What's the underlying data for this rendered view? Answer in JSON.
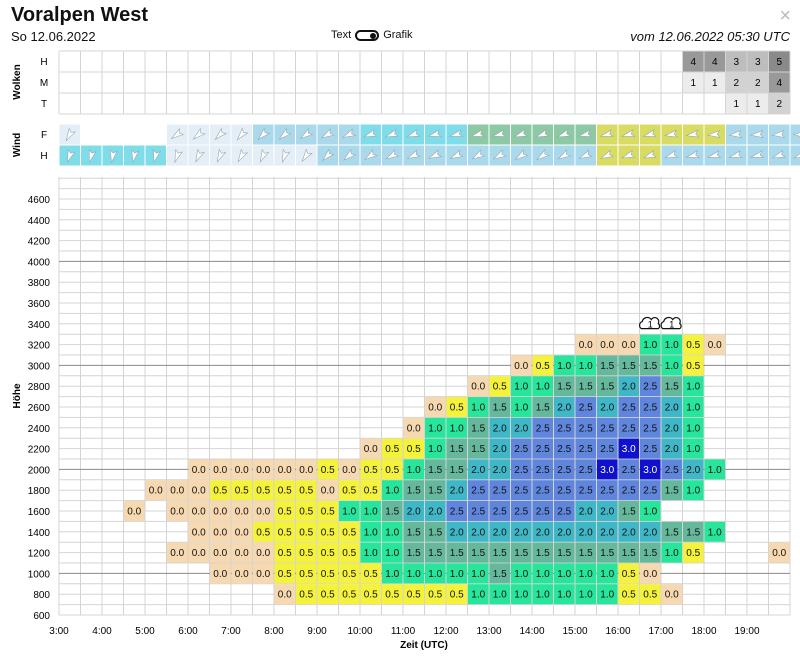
{
  "header": {
    "title": "Voralpen West",
    "date_left": "So 12.06.2022",
    "date_right": "vom 12.06.2022 05:30 UTC",
    "toggle_left": "Text",
    "toggle_right": "Grafik",
    "close_symbol": "×",
    "close_icon": "close-icon"
  },
  "colors": {
    "grid": "#d4d4d4",
    "grid_major": "#8a8a8a",
    "text": "#111111",
    "c0": "#f6d9b0",
    "c05": "#f4f23a",
    "c10": "#27e59b",
    "c15": "#65b89c",
    "c20": "#3fb7c6",
    "c25": "#5f86dc",
    "c30": "#1010d0",
    "w1": "#e3eef7",
    "w2": "#a9d9ea",
    "w3": "#7fdde9",
    "w4": "#8cc9a4",
    "w5": "#d9dc63"
  },
  "clouds": {
    "label": "Wolken",
    "levels": [
      "H",
      "M",
      "T"
    ],
    "cells": [
      {
        "level": "H",
        "time": 17.5,
        "value": "4",
        "shade": "#999999"
      },
      {
        "level": "H",
        "time": 18.0,
        "value": "4",
        "shade": "#999999"
      },
      {
        "level": "H",
        "time": 18.5,
        "value": "3",
        "shade": "#bdbdbd"
      },
      {
        "level": "H",
        "time": 19.0,
        "value": "3",
        "shade": "#bdbdbd"
      },
      {
        "level": "H",
        "time": 19.5,
        "value": "5",
        "shade": "#8a8a8a"
      },
      {
        "level": "M",
        "time": 17.5,
        "value": "1",
        "shade": "#ececec"
      },
      {
        "level": "M",
        "time": 18.0,
        "value": "1",
        "shade": "#ececec"
      },
      {
        "level": "M",
        "time": 18.5,
        "value": "2",
        "shade": "#d2d2d2"
      },
      {
        "level": "M",
        "time": 19.0,
        "value": "2",
        "shade": "#d2d2d2"
      },
      {
        "level": "M",
        "time": 19.5,
        "value": "4",
        "shade": "#999999"
      },
      {
        "level": "T",
        "time": 18.5,
        "value": "1",
        "shade": "#ececec"
      },
      {
        "level": "T",
        "time": 19.0,
        "value": "1",
        "shade": "#ececec"
      },
      {
        "level": "T",
        "time": 19.5,
        "value": "2",
        "shade": "#d2d2d2"
      }
    ]
  },
  "wind": {
    "label": "Wind",
    "rows": [
      "F",
      "H"
    ],
    "F_color_index": [
      1,
      0,
      0,
      0,
      0,
      1,
      1,
      1,
      1,
      2,
      2,
      2,
      2,
      2,
      3,
      3,
      3,
      3,
      3,
      4,
      4,
      4,
      4,
      4,
      4,
      5,
      5,
      5,
      5,
      5,
      5,
      2,
      2,
      2,
      2
    ],
    "F_dir": [
      210,
      -1,
      -1,
      -1,
      -1,
      235,
      230,
      225,
      220,
      225,
      230,
      235,
      240,
      245,
      250,
      250,
      250,
      255,
      255,
      255,
      255,
      250,
      250,
      250,
      255,
      255,
      255,
      255,
      260,
      260,
      265,
      265,
      265,
      265,
      270
    ],
    "H_color_index": [
      3,
      3,
      3,
      3,
      3,
      1,
      1,
      1,
      1,
      1,
      1,
      1,
      2,
      2,
      2,
      2,
      2,
      2,
      2,
      2,
      2,
      2,
      2,
      2,
      2,
      5,
      5,
      5,
      2,
      2,
      2,
      2,
      2,
      2,
      2
    ],
    "H_dir": [
      200,
      195,
      190,
      190,
      195,
      200,
      205,
      205,
      210,
      205,
      200,
      215,
      225,
      230,
      235,
      240,
      245,
      245,
      245,
      240,
      240,
      235,
      235,
      240,
      245,
      245,
      250,
      250,
      250,
      255,
      255,
      255,
      255,
      250,
      250
    ]
  },
  "chart_data": {
    "type": "heatmap",
    "xlabel": "Zeit (UTC)",
    "ylabel": "Höhe",
    "x_ticks": [
      "3:00",
      "4:00",
      "5:00",
      "6:00",
      "7:00",
      "8:00",
      "9:00",
      "10:00",
      "11:00",
      "12:00",
      "13:00",
      "14:00",
      "15:00",
      "16:00",
      "17:00",
      "18:00",
      "19:00"
    ],
    "y_ticks": [
      600,
      800,
      1000,
      1200,
      1400,
      1600,
      1800,
      2000,
      2200,
      2400,
      2600,
      2800,
      3000,
      3200,
      3400,
      3600,
      3800,
      4000,
      4200,
      4400,
      4600
    ],
    "xlim": [
      "3:00",
      "20:00"
    ],
    "ylim": [
      500,
      4800
    ],
    "time_start": "6:00",
    "rows": [
      {
        "altitude": 3200,
        "start": "15:00",
        "values": [
          "0.0",
          "0.0",
          "0.0",
          "1.0",
          "1.0",
          "0.5",
          "0.0"
        ]
      },
      {
        "altitude": 3000,
        "start": "13:30",
        "values": [
          "0.0",
          "0.5",
          "1.0",
          "1.0",
          "1.5",
          "1.5",
          "1.5",
          "1.0",
          "0.5"
        ]
      },
      {
        "altitude": 2800,
        "start": "12:30",
        "values": [
          "0.0",
          "0.5",
          "1.0",
          "1.0",
          "1.5",
          "1.5",
          "1.5",
          "2.0",
          "2.5",
          "1.5",
          "1.0"
        ]
      },
      {
        "altitude": 2600,
        "start": "11:30",
        "values": [
          "0.0",
          "0.5",
          "1.0",
          "1.5",
          "1.0",
          "1.5",
          "2.0",
          "2.5",
          "2.0",
          "2.5",
          "2.5",
          "2.0",
          "1.0"
        ]
      },
      {
        "altitude": 2400,
        "start": "11:00",
        "values": [
          "0.0",
          "1.0",
          "1.0",
          "1.5",
          "2.0",
          "2.0",
          "2.5",
          "2.5",
          "2.5",
          "2.5",
          "2.5",
          "2.5",
          "2.0",
          "1.0"
        ]
      },
      {
        "altitude": 2200,
        "start": "10:00",
        "values": [
          "0.0",
          "0.5",
          "0.5",
          "1.0",
          "1.5",
          "1.5",
          "2.0",
          "2.5",
          "2.5",
          "2.5",
          "2.5",
          "2.5",
          "3.0",
          "2.5",
          "2.0",
          "1.0"
        ]
      },
      {
        "altitude": 2000,
        "start": "6:00",
        "values": [
          "0.0",
          "0.0",
          "0.0",
          "0.0",
          "0.0",
          "0.0",
          "0.5",
          "0.0",
          "0.5",
          "0.5",
          "1.0",
          "1.5",
          "1.5",
          "2.0",
          "2.0",
          "2.5",
          "2.5",
          "2.5",
          "2.5",
          "3.0",
          "2.5",
          "3.0",
          "2.5",
          "2.0",
          "1.0"
        ]
      },
      {
        "altitude": 1800,
        "start": "5:00",
        "values": [
          "0.0",
          "0.0",
          "0.0",
          "0.5",
          "0.5",
          "0.5",
          "0.5",
          "0.5",
          "0.0",
          "0.5",
          "0.5",
          "1.0",
          "1.5",
          "1.5",
          "2.0",
          "2.5",
          "2.5",
          "2.5",
          "2.5",
          "2.5",
          "2.5",
          "2.5",
          "2.5",
          "2.5",
          "1.5",
          "1.0"
        ]
      },
      {
        "altitude": 1600,
        "start": "4:30",
        "values": [
          "0.0",
          "",
          "0.0",
          "0.0",
          "0.0",
          "0.0",
          "0.0",
          "0.5",
          "0.5",
          "0.5",
          "1.0",
          "1.0",
          "1.5",
          "2.0",
          "2.0",
          "2.5",
          "2.5",
          "2.5",
          "2.5",
          "2.5",
          "2.5",
          "2.0",
          "2.0",
          "1.5",
          "1.0"
        ]
      },
      {
        "altitude": 1400,
        "start": "6:00",
        "values": [
          "0.0",
          "0.0",
          "0.0",
          "0.5",
          "0.5",
          "0.5",
          "0.5",
          "0.5",
          "1.0",
          "1.0",
          "1.5",
          "1.5",
          "2.0",
          "2.0",
          "2.0",
          "2.0",
          "2.0",
          "2.0",
          "2.0",
          "2.0",
          "2.0",
          "2.0",
          "1.5",
          "1.5",
          "1.0"
        ]
      },
      {
        "altitude": 1200,
        "start": "5:30",
        "values": [
          "0.0",
          "0.0",
          "0.0",
          "0.0",
          "0.0",
          "0.5",
          "0.5",
          "0.5",
          "0.5",
          "1.0",
          "1.0",
          "1.5",
          "1.5",
          "1.5",
          "1.5",
          "1.5",
          "1.5",
          "1.5",
          "1.5",
          "1.5",
          "1.5",
          "1.5",
          "1.5",
          "1.0",
          "0.5"
        ]
      },
      {
        "altitude": 1000,
        "start": "6:30",
        "values": [
          "0.0",
          "0.0",
          "0.0",
          "0.5",
          "0.5",
          "0.5",
          "0.5",
          "0.5",
          "1.0",
          "1.0",
          "1.0",
          "1.0",
          "1.0",
          "1.5",
          "1.0",
          "1.0",
          "1.0",
          "1.0",
          "1.0",
          "0.5",
          "0.0"
        ]
      },
      {
        "altitude": 800,
        "start": "8:00",
        "values": [
          "0.0",
          "0.5",
          "0.5",
          "0.5",
          "0.5",
          "0.5",
          "0.5",
          "0.5",
          "0.5",
          "1.0",
          "1.0",
          "1.0",
          "1.0",
          "1.0",
          "1.0",
          "1.0",
          "0.5",
          "0.5",
          "0.0"
        ]
      }
    ],
    "extra_cells": [
      {
        "altitude": 1200,
        "time": "19:30",
        "value": "0.0"
      }
    ],
    "cloud_markers": [
      {
        "altitude": 3200,
        "time": "16:30",
        "value": "1"
      },
      {
        "altitude": 3200,
        "time": "17:00",
        "value": "1"
      }
    ]
  }
}
